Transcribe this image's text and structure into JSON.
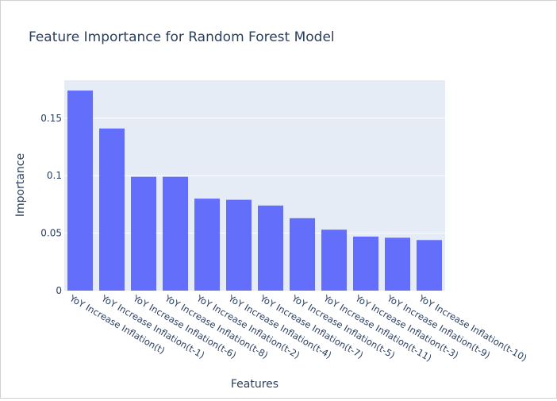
{
  "chart_data": {
    "type": "bar",
    "title": "Feature Importance for Random Forest Model",
    "xlabel": "Features",
    "ylabel": "Importance",
    "categories": [
      "YoY Increase Inflation(t)",
      "YoY Increase Inflation(t-1)",
      "YoY Increase Inflation(t-6)",
      "YoY Increase Inflation(t-8)",
      "YoY Increase Inflation(t-2)",
      "YoY Increase Inflation(t-4)",
      "YoY Increase Inflation(t-7)",
      "YoY Increase Inflation(t-5)",
      "YoY Increase Inflation(t-11)",
      "YoY Increase Inflation(t-3)",
      "YoY Increase Inflation(t-9)",
      "YoY Increase Inflation(t-10)"
    ],
    "values": [
      0.174,
      0.141,
      0.099,
      0.099,
      0.08,
      0.079,
      0.074,
      0.063,
      0.053,
      0.047,
      0.046,
      0.044
    ],
    "ylim": [
      0,
      0.183
    ],
    "yticks": [
      0,
      0.05,
      0.1,
      0.15
    ],
    "ytick_labels": [
      "0",
      "0.05",
      "0.1",
      "0.15"
    ],
    "grid": true,
    "colors": {
      "bar": "#636efa",
      "plot_bg": "#e5ecf6",
      "grid": "#ffffff",
      "text": "#2a3f5f"
    }
  }
}
